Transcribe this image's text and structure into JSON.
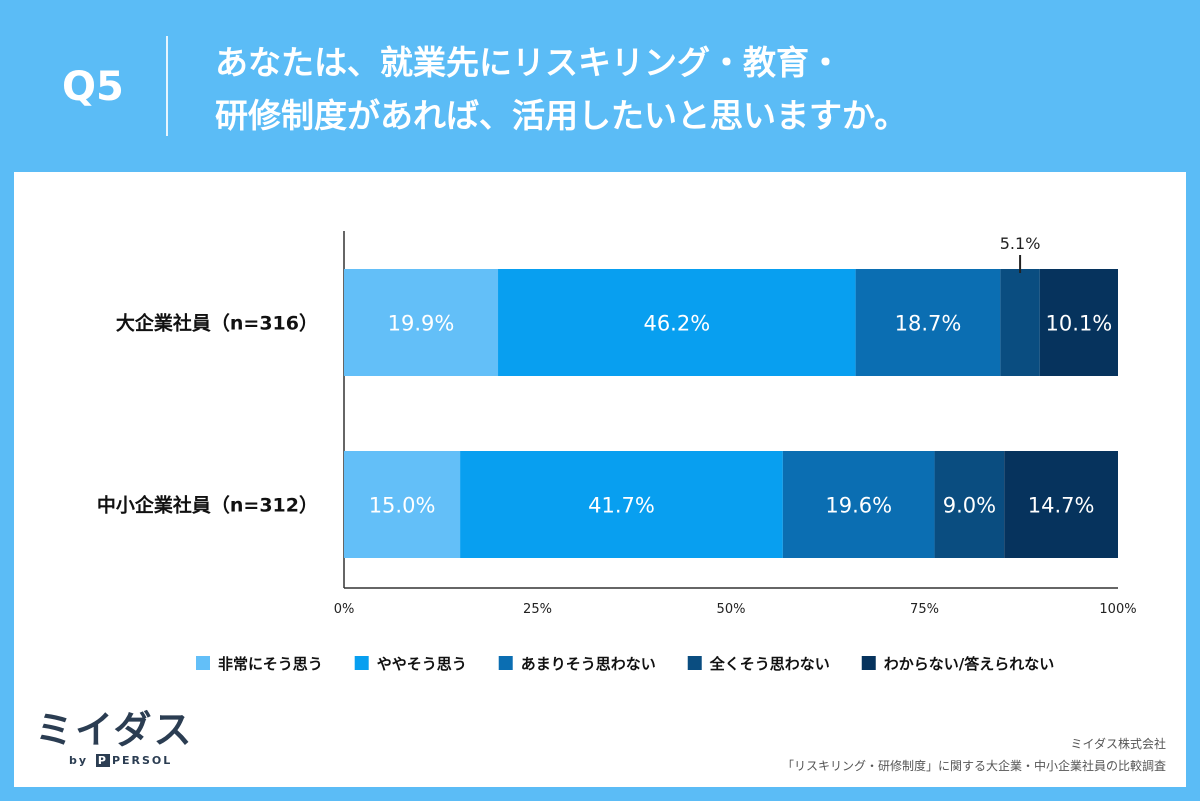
{
  "header": {
    "question_no": "Q5",
    "question_line1": "あなたは、就業先にリスキリング・教育・",
    "question_line2": "研修制度があれば、活用したいと思いますか。"
  },
  "chart_data": {
    "type": "bar",
    "orientation": "horizontal",
    "stacked": true,
    "categories": [
      "大企業社員（n=316）",
      "中小企業社員（n=312）"
    ],
    "series": [
      {
        "name": "非常にそう思う",
        "color": "#63bff8",
        "values": [
          19.9,
          15.0
        ],
        "labels": [
          "19.9%",
          "15.0%"
        ]
      },
      {
        "name": "ややそう思う",
        "color": "#089ff0",
        "values": [
          46.2,
          41.7
        ],
        "labels": [
          "46.2%",
          "41.7%"
        ]
      },
      {
        "name": "あまりそう思わない",
        "color": "#0b6eb2",
        "values": [
          18.7,
          19.6
        ],
        "labels": [
          "18.7%",
          "19.6%"
        ]
      },
      {
        "name": "全くそう思わない",
        "color": "#0a4d80",
        "values": [
          5.1,
          9.0
        ],
        "labels": [
          "5.1%",
          "9.0%"
        ]
      },
      {
        "name": "わからない/答えられない",
        "color": "#06335d",
        "values": [
          10.1,
          14.7
        ],
        "labels": [
          "10.1%",
          "14.7%"
        ]
      }
    ],
    "xlim": [
      0,
      100
    ],
    "x_ticks": [
      "0%",
      "25%",
      "50%",
      "75%",
      "100%"
    ],
    "callout": {
      "category_index": 0,
      "series_index": 3,
      "label": "5.1%"
    }
  },
  "logo": {
    "name": "ミイダス",
    "sub_prefix": "by",
    "sub_mark": "P",
    "sub_brand": "PERSOL"
  },
  "source": {
    "company": "ミイダス株式会社",
    "survey": "「リスキリング・研修制度」に関する大企業・中小企業社員の比較調査"
  }
}
